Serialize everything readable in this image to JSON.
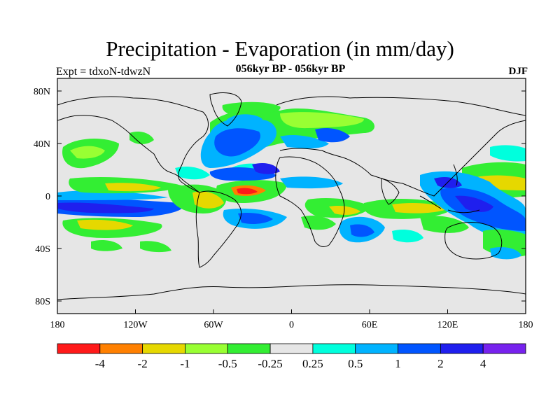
{
  "title": "Precipitation - Evaporation (in mm/day)",
  "subtitle": "056kyr BP - 056kyr BP",
  "left_label": "Expt = tdxoN-tdwzN",
  "right_label": "DJF",
  "lat_ticks": [
    "80N",
    "40N",
    "0",
    "40S",
    "80S"
  ],
  "lon_ticks": [
    "180",
    "120W",
    "60W",
    "0",
    "60E",
    "120E",
    "180"
  ],
  "colorbar": {
    "colors": [
      "#ff1a1a",
      "#ff8000",
      "#e6d800",
      "#99ff33",
      "#33ee33",
      "#e6e6e6",
      "#00ffdd",
      "#00b3ff",
      "#0055ff",
      "#1f1fee",
      "#7722ee"
    ],
    "labels": [
      "-4",
      "-2",
      "-1",
      "-0.5",
      "-0.25",
      "0.25",
      "0.5",
      "1",
      "2",
      "4"
    ]
  }
}
